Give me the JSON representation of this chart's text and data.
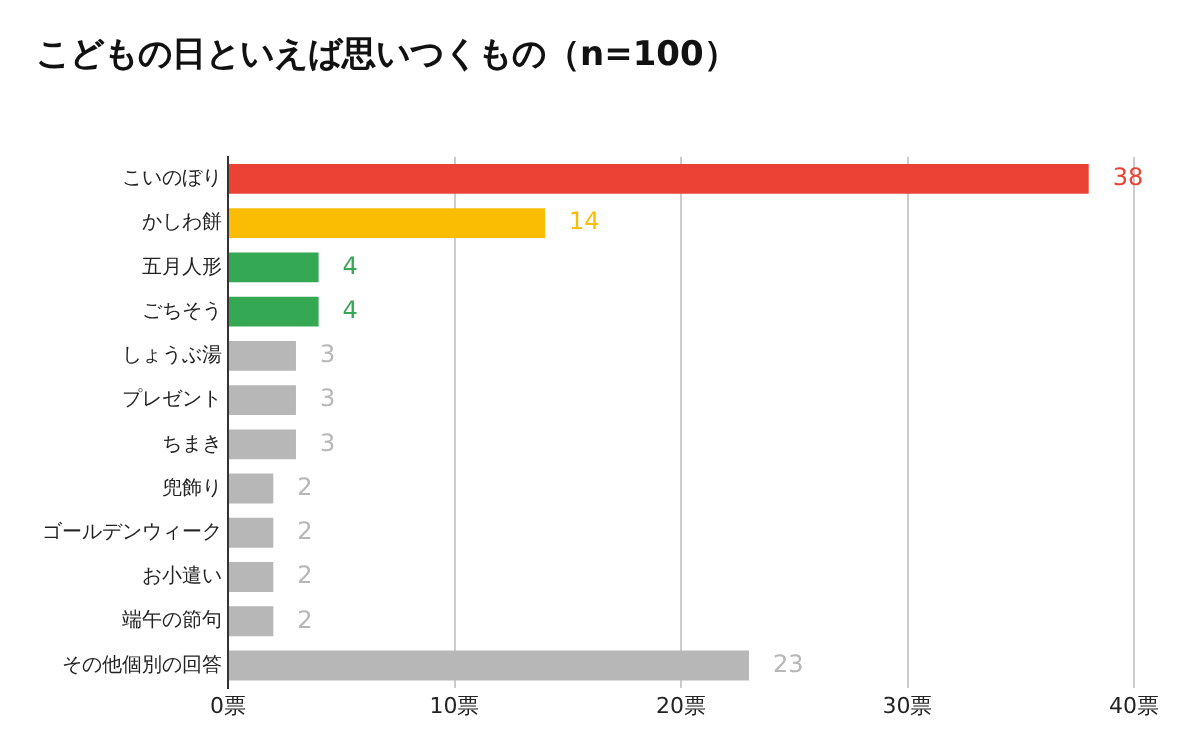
{
  "chart_data": {
    "type": "bar",
    "orientation": "horizontal",
    "title": "こどもの日といえば思いつくもの（n=100）",
    "categories": [
      "こいのぼり",
      "かしわ餅",
      "五月人形",
      "ごちそう",
      "しょうぶ湯",
      "プレゼント",
      "ちまき",
      "兜飾り",
      "ゴールデンウィーク",
      "お小遣い",
      "端午の節句",
      "その他個別の回答"
    ],
    "values": [
      38,
      14,
      4,
      4,
      3,
      3,
      3,
      2,
      2,
      2,
      2,
      23
    ],
    "colors": [
      "#ea4335",
      "#fbbc04",
      "#34a853",
      "#34a853",
      "#b7b7b7",
      "#b7b7b7",
      "#b7b7b7",
      "#b7b7b7",
      "#b7b7b7",
      "#b7b7b7",
      "#b7b7b7",
      "#b7b7b7"
    ],
    "xlim": [
      0,
      40
    ],
    "xticks": [
      {
        "value": 0,
        "label": "0票"
      },
      {
        "value": 10,
        "label": "10票"
      },
      {
        "value": 20,
        "label": "20票"
      },
      {
        "value": 30,
        "label": "30票"
      },
      {
        "value": 40,
        "label": "40票"
      }
    ],
    "grid": "x",
    "legend": false,
    "data_labels": true
  }
}
